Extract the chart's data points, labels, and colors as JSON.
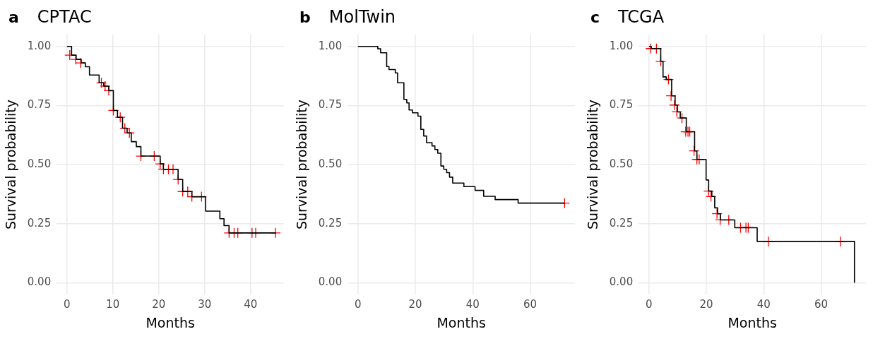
{
  "chart_data": [
    {
      "type": "step",
      "title": "CPTAC",
      "annotations": [
        "a"
      ],
      "xlabel": "Months",
      "ylabel": "Survival probability",
      "xlim": [
        -2.25,
        47.25
      ],
      "ylim": [
        -0.05,
        1.05
      ],
      "xticks": [
        0,
        10,
        20,
        30,
        40
      ],
      "yticks": [
        {
          "value": 0,
          "label": "0.00"
        },
        {
          "value": 0.25,
          "label": "0.25"
        },
        {
          "value": 0.5,
          "label": "0.50"
        },
        {
          "value": 0.75,
          "label": "0.75"
        },
        {
          "value": 1,
          "label": "1.00"
        }
      ],
      "grid": true,
      "series": [
        {
          "marker": "none",
          "color": "#000000",
          "x": [
            0,
            1.0,
            2.0,
            3.1,
            4.0,
            4.9,
            7.0,
            8.0,
            9.1,
            10.1,
            11.0,
            12.1,
            13.1,
            14.0,
            15.1,
            16.1,
            20.3,
            21.0,
            24.2,
            25.2,
            27.2,
            30.2,
            33.3,
            34.2,
            35.3,
            45.5
          ],
          "values": [
            1,
            0.963,
            0.945,
            0.93,
            0.914,
            0.879,
            0.846,
            0.832,
            0.813,
            0.729,
            0.7,
            0.654,
            0.634,
            0.597,
            0.576,
            0.536,
            0.503,
            0.48,
            0.437,
            0.386,
            0.364,
            0.303,
            0.271,
            0.242,
            0.211,
            0.211
          ]
        },
        {
          "type": "scatter",
          "marker": "cross",
          "color": "#ff0000",
          "x": [
            0.6,
            1.9,
            3.0,
            7.5,
            8.3,
            9.1,
            10.1,
            11.6,
            12.6,
            13.6,
            16.1,
            19.0,
            20.3,
            21.0,
            22.1,
            23.1,
            24.2,
            25.2,
            26.3,
            27.2,
            29.3,
            35.3,
            36.4,
            37.2,
            40.3,
            41.1,
            45.4
          ],
          "values": [
            0.963,
            0.945,
            0.93,
            0.846,
            0.832,
            0.813,
            0.729,
            0.7,
            0.654,
            0.634,
            0.536,
            0.536,
            0.503,
            0.48,
            0.48,
            0.48,
            0.437,
            0.386,
            0.386,
            0.364,
            0.364,
            0.211,
            0.211,
            0.211,
            0.211,
            0.211,
            0.211
          ]
        }
      ]
    },
    {
      "type": "step",
      "title": "MolTwin",
      "annotations": [
        "b"
      ],
      "xlabel": "Months",
      "ylabel": "Survival probability",
      "xlim": [
        -3.6,
        75.6
      ],
      "ylim": [
        -0.05,
        1.05
      ],
      "xticks": [
        0,
        20,
        40,
        60
      ],
      "yticks": [
        {
          "value": 0,
          "label": "0.00"
        },
        {
          "value": 0.25,
          "label": "0.25"
        },
        {
          "value": 0.5,
          "label": "0.50"
        },
        {
          "value": 0.75,
          "label": "0.75"
        },
        {
          "value": 1,
          "label": "1.00"
        }
      ],
      "grid": true,
      "series": [
        {
          "marker": "none",
          "color": "#000000",
          "x": [
            0,
            6.9,
            7.9,
            10.0,
            10.8,
            13.0,
            13.8,
            16.0,
            17.0,
            17.8,
            19.0,
            20.9,
            21.9,
            22.9,
            23.9,
            25.8,
            26.8,
            27.8,
            28.9,
            29.9,
            30.9,
            31.9,
            33.0,
            36.9,
            40.8,
            43.8,
            47.8,
            55.8,
            72
          ],
          "values": [
            1,
            0.99,
            0.973,
            0.915,
            0.902,
            0.888,
            0.846,
            0.776,
            0.761,
            0.731,
            0.719,
            0.705,
            0.649,
            0.621,
            0.593,
            0.579,
            0.564,
            0.548,
            0.494,
            0.48,
            0.466,
            0.447,
            0.422,
            0.407,
            0.391,
            0.366,
            0.352,
            0.337,
            0.337
          ]
        },
        {
          "type": "scatter",
          "marker": "cross",
          "color": "#ff0000",
          "x": [
            72
          ],
          "values": [
            0.337
          ]
        }
      ]
    },
    {
      "type": "step",
      "title": "TCGA",
      "annotations": [
        "c"
      ],
      "xlabel": "Months",
      "ylabel": "Survival probability",
      "xlim": [
        -3.6,
        75.6
      ],
      "ylim": [
        -0.05,
        1.05
      ],
      "xticks": [
        0,
        20,
        40,
        60
      ],
      "yticks": [
        {
          "value": 0,
          "label": "0.00"
        },
        {
          "value": 0.25,
          "label": "0.25"
        },
        {
          "value": 0.5,
          "label": "0.50"
        },
        {
          "value": 0.75,
          "label": "0.75"
        },
        {
          "value": 1,
          "label": "1.00"
        }
      ],
      "grid": true,
      "series": [
        {
          "marker": "none",
          "color": "#000000",
          "x": [
            0,
            0.8,
            4.1,
            4.9,
            6.0,
            7.9,
            9.1,
            9.9,
            10.9,
            13.0,
            15.9,
            16.7,
            19.9,
            20.8,
            21.9,
            22.9,
            23.9,
            24.9,
            29.9,
            37.7,
            71.6
          ],
          "values": [
            1,
            0.991,
            0.937,
            0.871,
            0.86,
            0.791,
            0.752,
            0.723,
            0.697,
            0.639,
            0.558,
            0.522,
            0.435,
            0.388,
            0.365,
            0.317,
            0.292,
            0.266,
            0.233,
            0.175,
            0
          ]
        },
        {
          "type": "scatter",
          "marker": "cross",
          "color": "#ff0000",
          "x": [
            0.6,
            2.6,
            4.1,
            6.8,
            7.7,
            8.9,
            9.7,
            11.5,
            12.8,
            13.6,
            14.2,
            15.7,
            16.7,
            17.5,
            20.8,
            21.6,
            23.7,
            24.8,
            27.8,
            31.9,
            33.8,
            34.6,
            41.6,
            66.7
          ],
          "values": [
            0.991,
            0.991,
            0.937,
            0.86,
            0.791,
            0.752,
            0.723,
            0.697,
            0.639,
            0.639,
            0.639,
            0.558,
            0.522,
            0.522,
            0.388,
            0.365,
            0.292,
            0.266,
            0.266,
            0.233,
            0.233,
            0.233,
            0.175,
            0.175
          ]
        }
      ]
    }
  ]
}
